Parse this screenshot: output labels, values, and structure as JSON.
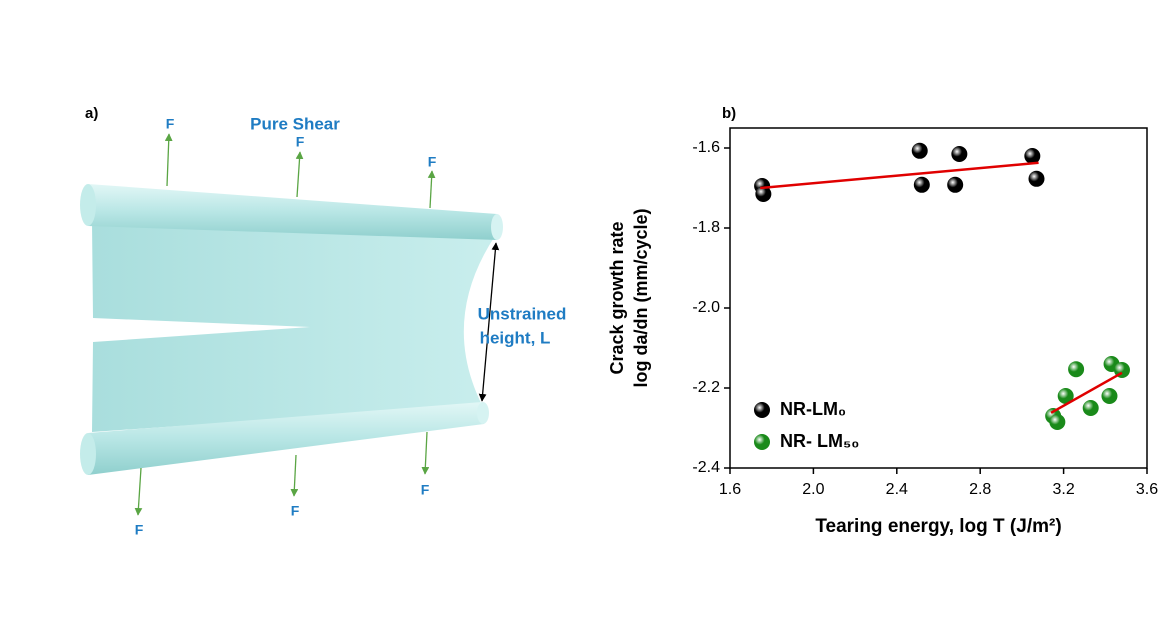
{
  "diagram": {
    "label": "a)",
    "title": "Pure Shear",
    "forces": [
      "F",
      "F",
      "F",
      "F",
      "F",
      "F"
    ],
    "annotation": [
      "Unstrained",
      "height, L"
    ]
  },
  "chart_data": {
    "type": "scatter",
    "label": "b)",
    "x_label": "Tearing energy, log T (J/m²)",
    "y_label": [
      "Crack growth rate",
      "log da/dn (mm/cycle)"
    ],
    "xlim": [
      1.6,
      3.6
    ],
    "xticks": [
      1.6,
      {
        "value": 2,
        "label": "2.0"
      },
      2.4,
      2.8,
      3.2,
      3.6
    ],
    "ylim": [
      -2.4,
      -1.55
    ],
    "yticks": [
      -1.6,
      -1.8,
      {
        "value": -2,
        "label": "-2.0"
      },
      -2.2,
      -2.4
    ],
    "legend": "lower left",
    "series": [
      {
        "name": "NR-LM₀",
        "color": "#000000",
        "x": [
          1.754,
          1.76,
          2.51,
          2.52,
          2.7,
          2.68,
          3.05,
          3.07
        ],
        "values": [
          -1.695,
          -1.715,
          -1.607,
          -1.692,
          -1.615,
          -1.692,
          -1.62,
          -1.677
        ]
      },
      {
        "name": "NR- LM₅₀",
        "color": "#1a8a1a",
        "x": [
          3.15,
          3.17,
          3.21,
          3.26,
          3.33,
          3.43,
          3.42,
          3.48
        ],
        "values": [
          -2.27,
          -2.285,
          -2.22,
          -2.153,
          -2.25,
          -2.14,
          -2.22,
          -2.155
        ]
      }
    ],
    "fits": [
      {
        "color": "#e00000",
        "x": [
          1.745,
          3.08
        ],
        "values": [
          -1.7,
          -1.637
        ]
      },
      {
        "color": "#e00000",
        "x": [
          3.14,
          3.48
        ],
        "values": [
          -2.262,
          -2.162
        ]
      }
    ]
  }
}
